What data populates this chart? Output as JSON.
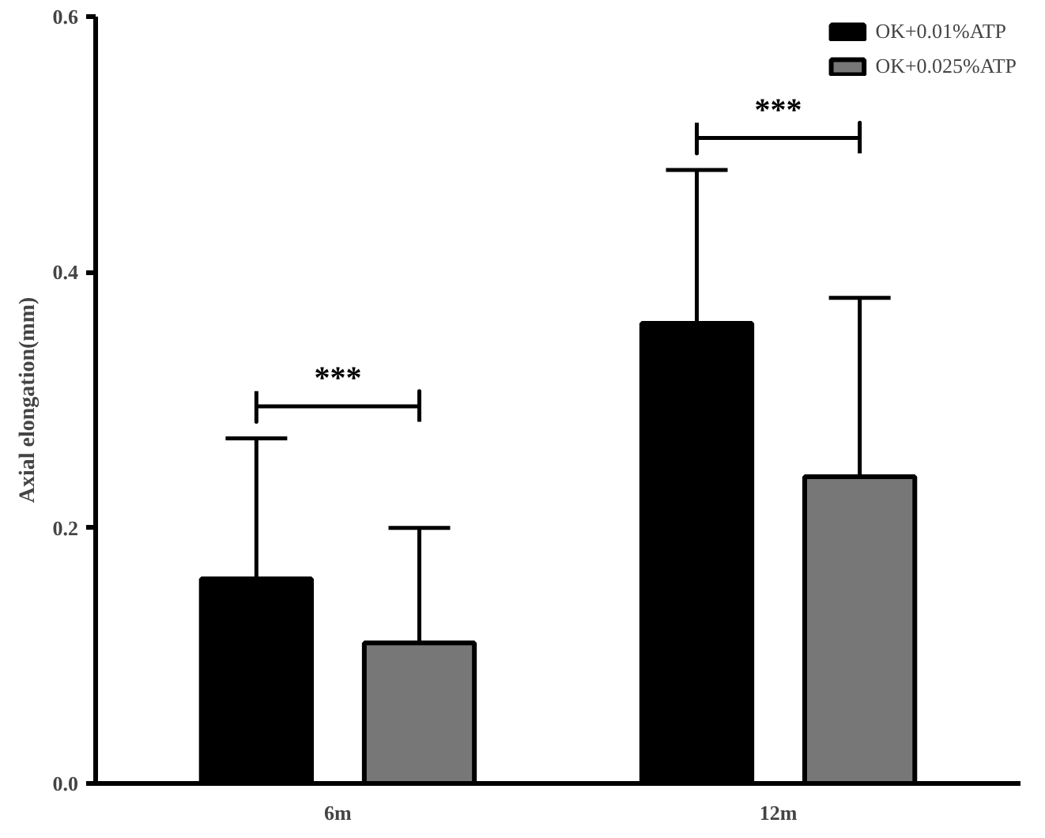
{
  "chart_data": {
    "type": "bar",
    "categories": [
      "6m",
      "12m"
    ],
    "ylabel": "Axial elongation(mm)",
    "series": [
      {
        "name": "OK+0.01%ATP",
        "color": "#000000",
        "values": [
          0.16,
          0.36
        ],
        "errors": [
          [
            0.16,
            0.27
          ],
          [
            0.36,
            0.48
          ]
        ]
      },
      {
        "name": "OK+0.025%ATP",
        "color": "#777777",
        "values": [
          0.11,
          0.24
        ],
        "errors": [
          [
            0.11,
            0.2
          ],
          [
            0.24,
            0.38
          ]
        ]
      }
    ],
    "ylim": [
      0,
      0.6
    ],
    "yticks": [
      {
        "value": 0,
        "label": "0.0"
      },
      {
        "value": 0.2,
        "label": "0.2"
      },
      {
        "value": 0.4,
        "label": "0.4"
      },
      {
        "value": 0.6,
        "label": "0.6"
      }
    ],
    "annotations": [
      "***",
      "***"
    ],
    "grid": false,
    "legend": "top right"
  }
}
